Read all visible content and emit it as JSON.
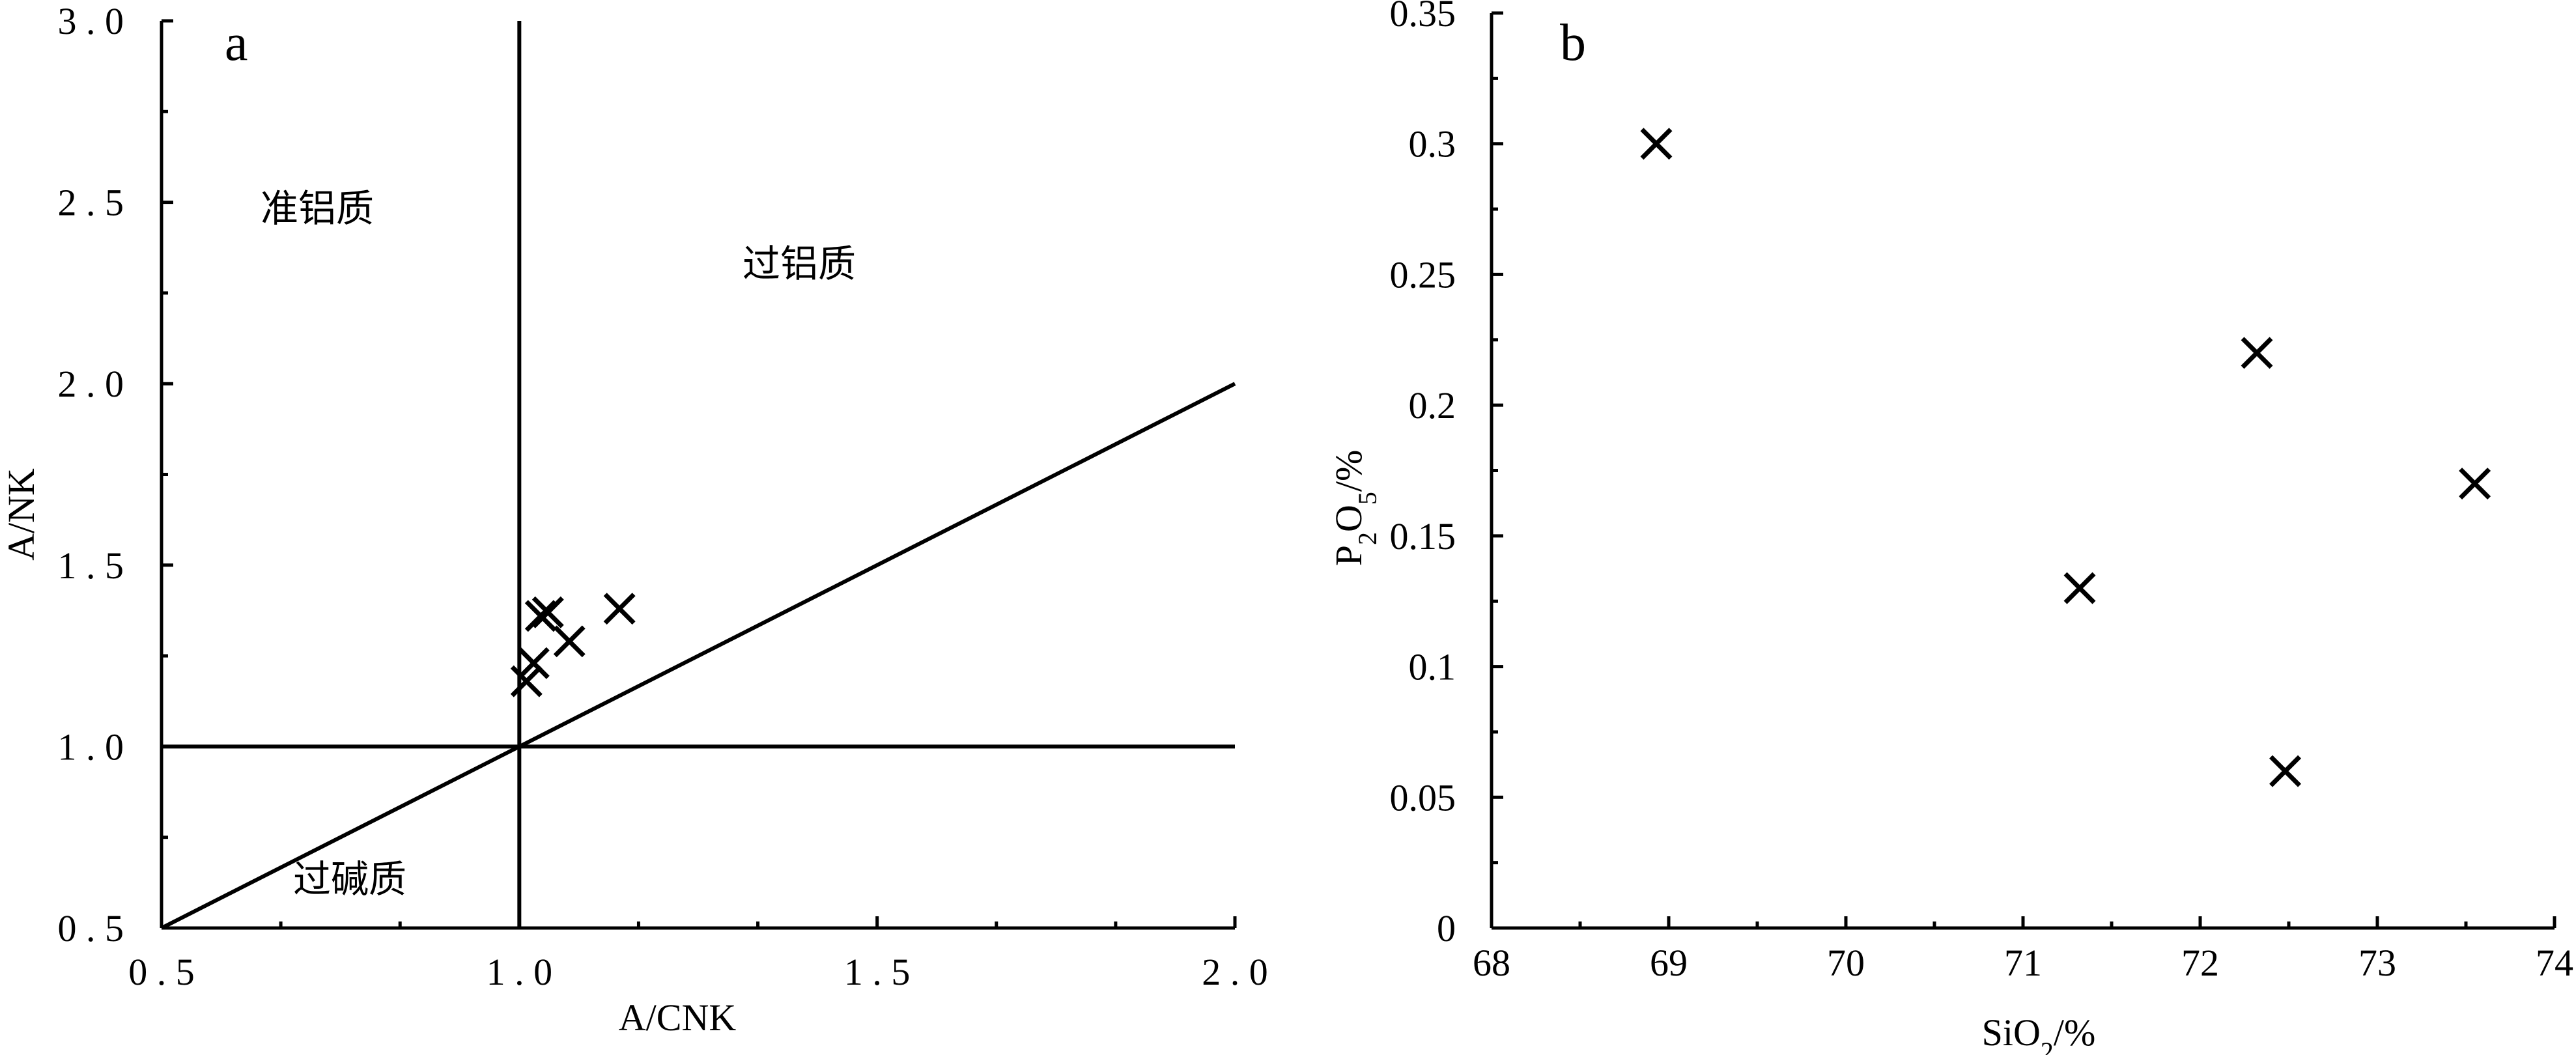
{
  "chart_data": [
    {
      "panel": "a",
      "type": "scatter",
      "xlabel": "A/CNK",
      "ylabel": "A/NK",
      "xlim": [
        0.5,
        2.0
      ],
      "ylim": [
        0.5,
        3.0
      ],
      "x_ticks": [
        "0.5",
        "1.0",
        "1.5",
        "2.0"
      ],
      "y_ticks": [
        "0.5",
        "1.0",
        "1.5",
        "2.0",
        "2.5",
        "3.0"
      ],
      "reference_lines": [
        {
          "from": [
            1.0,
            0.5
          ],
          "to": [
            1.0,
            3.0
          ]
        },
        {
          "from": [
            0.5,
            1.0
          ],
          "to": [
            2.0,
            1.0
          ]
        },
        {
          "from": [
            0.5,
            0.5
          ],
          "to": [
            2.0,
            2.0
          ]
        }
      ],
      "region_labels": [
        "准铝质",
        "过铝质",
        "过碱质"
      ],
      "points": [
        {
          "x": 1.01,
          "y": 1.18
        },
        {
          "x": 1.02,
          "y": 1.23
        },
        {
          "x": 1.03,
          "y": 1.36
        },
        {
          "x": 1.04,
          "y": 1.37
        },
        {
          "x": 1.07,
          "y": 1.29
        },
        {
          "x": 1.14,
          "y": 1.38
        }
      ],
      "marker": "x",
      "grid": false
    },
    {
      "panel": "b",
      "type": "scatter",
      "xlabel": "SiO2/%",
      "ylabel": "P2O5/%",
      "xlim": [
        68,
        74
      ],
      "ylim": [
        0,
        0.35
      ],
      "x_ticks": [
        "68",
        "69",
        "70",
        "71",
        "72",
        "73",
        "74"
      ],
      "y_ticks": [
        "0",
        "0.05",
        "0.1",
        "0.15",
        "0.2",
        "0.25",
        "0.3",
        "0.35"
      ],
      "points": [
        {
          "x": 68.93,
          "y": 0.3
        },
        {
          "x": 71.32,
          "y": 0.13
        },
        {
          "x": 72.32,
          "y": 0.22
        },
        {
          "x": 72.48,
          "y": 0.06
        },
        {
          "x": 73.55,
          "y": 0.17
        }
      ],
      "marker": "x",
      "grid": false
    }
  ]
}
